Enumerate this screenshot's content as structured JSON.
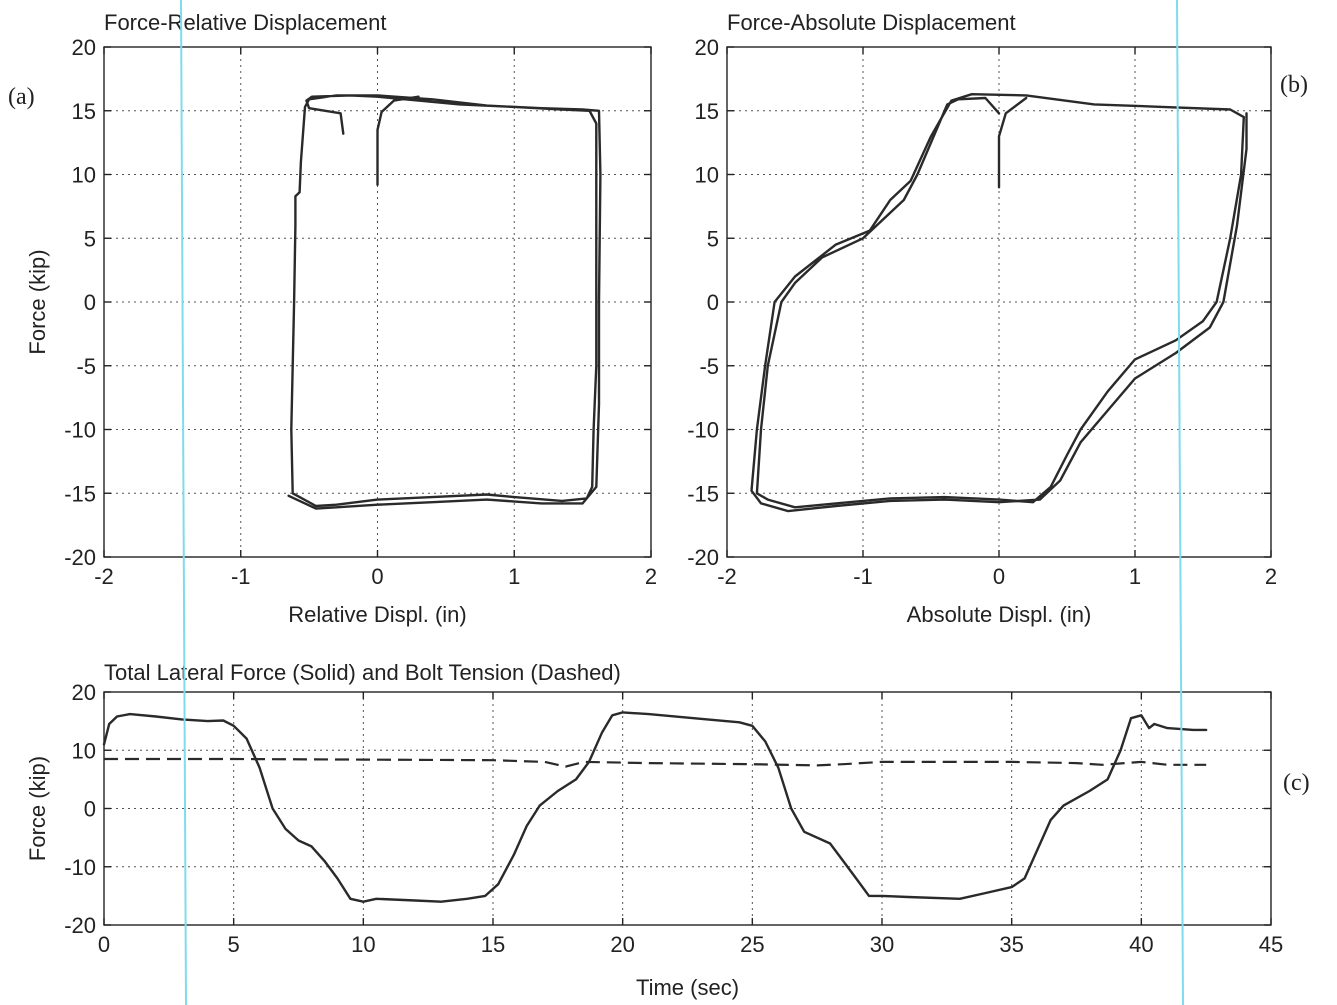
{
  "panel_labels": {
    "a": "(a)",
    "b": "(b)",
    "c": "(c)"
  },
  "chart_data": [
    {
      "id": "a",
      "type": "line",
      "title": "Force-Relative Displacement",
      "xlabel": "Relative Displ. (in)",
      "ylabel": "Force (kip)",
      "xlim": [
        -2,
        2
      ],
      "ylim": [
        -20,
        20
      ],
      "xticks": [
        -2,
        -1,
        0,
        1,
        2
      ],
      "yticks": [
        -20,
        -15,
        -10,
        -5,
        0,
        5,
        10,
        15,
        20
      ],
      "grid": true,
      "series": [
        {
          "points": [
            [
              -0.25,
              13.2
            ],
            [
              -0.27,
              14.8
            ],
            [
              -0.5,
              15.2
            ],
            [
              -0.52,
              15.8
            ],
            [
              -0.48,
              16.1
            ],
            [
              -0.2,
              16.2
            ],
            [
              0.0,
              16.1
            ],
            [
              0.3,
              15.8
            ],
            [
              0.6,
              15.5
            ],
            [
              1.0,
              15.3
            ],
            [
              1.35,
              15.1
            ],
            [
              1.55,
              15.0
            ],
            [
              1.6,
              14.0
            ],
            [
              1.6,
              5.0
            ],
            [
              1.6,
              -5.0
            ],
            [
              1.58,
              -10.0
            ],
            [
              1.57,
              -14.5
            ],
            [
              1.53,
              -15.4
            ],
            [
              1.35,
              -15.6
            ],
            [
              1.0,
              -15.3
            ],
            [
              0.8,
              -15.1
            ],
            [
              0.4,
              -15.3
            ],
            [
              0.0,
              -15.5
            ],
            [
              -0.3,
              -15.9
            ],
            [
              -0.45,
              -16.0
            ],
            [
              -0.62,
              -15.0
            ],
            [
              -0.63,
              -10.0
            ],
            [
              -0.62,
              -5.0
            ],
            [
              -0.61,
              0.0
            ],
            [
              -0.6,
              6.0
            ],
            [
              -0.6,
              8.3
            ],
            [
              -0.57,
              8.6
            ],
            [
              -0.56,
              11.0
            ],
            [
              -0.53,
              15.3
            ],
            [
              -0.5,
              15.9
            ],
            [
              -0.3,
              16.2
            ],
            [
              0.0,
              16.2
            ],
            [
              0.4,
              15.9
            ],
            [
              0.8,
              15.4
            ],
            [
              1.2,
              15.2
            ],
            [
              1.5,
              15.1
            ],
            [
              1.62,
              15.0
            ],
            [
              1.63,
              10.0
            ],
            [
              1.62,
              0.0
            ],
            [
              1.62,
              -8.0
            ],
            [
              1.6,
              -14.5
            ],
            [
              1.5,
              -15.8
            ],
            [
              1.2,
              -15.8
            ],
            [
              0.8,
              -15.5
            ],
            [
              0.4,
              -15.7
            ],
            [
              0.0,
              -15.9
            ],
            [
              -0.3,
              -16.1
            ],
            [
              -0.45,
              -16.2
            ],
            [
              -0.65,
              -15.2
            ]
          ]
        },
        {
          "points": [
            [
              0.0,
              9.2
            ],
            [
              0.0,
              13.5
            ],
            [
              0.03,
              14.9
            ],
            [
              0.12,
              15.8
            ],
            [
              0.3,
              16.1
            ]
          ]
        }
      ]
    },
    {
      "id": "b",
      "type": "line",
      "title": "Force-Absolute Displacement",
      "xlabel": "Absolute Displ. (in)",
      "ylabel": "",
      "xlim": [
        -2,
        2
      ],
      "ylim": [
        -20,
        20
      ],
      "xticks": [
        -2,
        -1,
        0,
        1,
        2
      ],
      "yticks": [
        -20,
        -15,
        -10,
        -5,
        0,
        5,
        10,
        15,
        20
      ],
      "grid": true,
      "series": [
        {
          "points": [
            [
              0.0,
              14.8
            ],
            [
              -0.1,
              16.0
            ],
            [
              -0.3,
              15.9
            ],
            [
              -0.38,
              15.5
            ],
            [
              -0.6,
              10.0
            ],
            [
              -0.7,
              8.0
            ],
            [
              -0.8,
              7.0
            ],
            [
              -1.0,
              5.0
            ],
            [
              -1.3,
              3.5
            ],
            [
              -1.5,
              1.5
            ],
            [
              -1.6,
              0.0
            ],
            [
              -1.7,
              -5.0
            ],
            [
              -1.75,
              -10.0
            ],
            [
              -1.78,
              -15.0
            ],
            [
              -1.7,
              -15.5
            ],
            [
              -1.5,
              -16.1
            ],
            [
              -1.2,
              -15.8
            ],
            [
              -0.8,
              -15.4
            ],
            [
              -0.4,
              -15.3
            ],
            [
              0.0,
              -15.5
            ],
            [
              0.25,
              -15.7
            ],
            [
              0.38,
              -14.5
            ],
            [
              0.5,
              -12.0
            ],
            [
              0.6,
              -10.0
            ],
            [
              0.8,
              -7.0
            ],
            [
              1.0,
              -4.5
            ],
            [
              1.3,
              -3.0
            ],
            [
              1.5,
              -1.5
            ],
            [
              1.6,
              0.0
            ],
            [
              1.7,
              5.0
            ],
            [
              1.78,
              10.0
            ],
            [
              1.8,
              14.5
            ],
            [
              1.7,
              15.1
            ],
            [
              1.2,
              15.3
            ],
            [
              0.7,
              15.5
            ],
            [
              0.2,
              16.2
            ],
            [
              -0.2,
              16.3
            ],
            [
              -0.35,
              15.8
            ],
            [
              -0.5,
              13.0
            ],
            [
              -0.65,
              9.5
            ],
            [
              -0.8,
              8.0
            ],
            [
              -0.95,
              5.6
            ],
            [
              -1.2,
              4.5
            ],
            [
              -1.5,
              2.0
            ],
            [
              -1.65,
              0.0
            ],
            [
              -1.72,
              -5.0
            ],
            [
              -1.78,
              -10.0
            ],
            [
              -1.82,
              -14.8
            ],
            [
              -1.75,
              -15.8
            ],
            [
              -1.55,
              -16.4
            ],
            [
              -1.2,
              -16.0
            ],
            [
              -0.8,
              -15.6
            ],
            [
              -0.4,
              -15.5
            ],
            [
              0.0,
              -15.7
            ],
            [
              0.3,
              -15.5
            ],
            [
              0.45,
              -14.0
            ],
            [
              0.6,
              -11.0
            ],
            [
              0.8,
              -8.5
            ],
            [
              1.0,
              -6.0
            ],
            [
              1.3,
              -4.0
            ],
            [
              1.55,
              -2.0
            ],
            [
              1.65,
              0.0
            ],
            [
              1.75,
              6.0
            ],
            [
              1.82,
              12.0
            ],
            [
              1.82,
              14.8
            ]
          ]
        },
        {
          "points": [
            [
              0.0,
              9.0
            ],
            [
              0.0,
              13.0
            ],
            [
              0.05,
              14.8
            ],
            [
              0.2,
              16.0
            ]
          ]
        }
      ]
    },
    {
      "id": "c",
      "type": "line",
      "title": "Total Lateral Force (Solid) and Bolt Tension (Dashed)",
      "xlabel": "Time (sec)",
      "ylabel": "Force (kip)",
      "xlim": [
        0,
        45
      ],
      "ylim": [
        -20,
        20
      ],
      "xticks": [
        0,
        5,
        10,
        15,
        20,
        25,
        30,
        35,
        40,
        45
      ],
      "yticks": [
        -20,
        -10,
        0,
        10,
        20
      ],
      "grid": true,
      "series": [
        {
          "style": "solid",
          "points": [
            [
              0.0,
              11.0
            ],
            [
              0.2,
              14.5
            ],
            [
              0.5,
              15.8
            ],
            [
              1.0,
              16.2
            ],
            [
              2.0,
              15.8
            ],
            [
              3.0,
              15.3
            ],
            [
              4.0,
              15.0
            ],
            [
              4.6,
              15.1
            ],
            [
              5.0,
              14.2
            ],
            [
              5.5,
              12.0
            ],
            [
              6.0,
              7.0
            ],
            [
              6.5,
              0.0
            ],
            [
              7.0,
              -3.5
            ],
            [
              7.5,
              -5.5
            ],
            [
              8.0,
              -6.5
            ],
            [
              8.5,
              -9.0
            ],
            [
              9.0,
              -12.0
            ],
            [
              9.5,
              -15.5
            ],
            [
              10.0,
              -16.0
            ],
            [
              10.5,
              -15.5
            ],
            [
              12.0,
              -15.8
            ],
            [
              13.0,
              -16.0
            ],
            [
              14.0,
              -15.5
            ],
            [
              14.7,
              -15.0
            ],
            [
              15.2,
              -13.0
            ],
            [
              15.8,
              -8.0
            ],
            [
              16.3,
              -3.0
            ],
            [
              16.8,
              0.5
            ],
            [
              17.5,
              3.0
            ],
            [
              18.2,
              5.0
            ],
            [
              18.7,
              8.0
            ],
            [
              19.2,
              13.0
            ],
            [
              19.6,
              16.0
            ],
            [
              20.0,
              16.5
            ],
            [
              21.0,
              16.2
            ],
            [
              23.0,
              15.4
            ],
            [
              24.5,
              14.8
            ],
            [
              25.0,
              14.2
            ],
            [
              25.5,
              11.5
            ],
            [
              26.0,
              7.0
            ],
            [
              26.5,
              0.0
            ],
            [
              27.0,
              -4.0
            ],
            [
              28.0,
              -6.0
            ],
            [
              28.5,
              -9.0
            ],
            [
              29.0,
              -12.0
            ],
            [
              29.5,
              -15.0
            ],
            [
              30.0,
              -15.0
            ],
            [
              31.0,
              -15.2
            ],
            [
              33.0,
              -15.5
            ],
            [
              34.0,
              -14.5
            ],
            [
              35.0,
              -13.5
            ],
            [
              35.5,
              -12.0
            ],
            [
              36.0,
              -7.0
            ],
            [
              36.5,
              -2.0
            ],
            [
              37.0,
              0.5
            ],
            [
              38.0,
              3.0
            ],
            [
              38.7,
              5.0
            ],
            [
              39.2,
              10.0
            ],
            [
              39.6,
              15.5
            ],
            [
              40.0,
              16.0
            ],
            [
              40.3,
              13.8
            ],
            [
              40.5,
              14.5
            ],
            [
              41.0,
              13.8
            ],
            [
              42.0,
              13.5
            ],
            [
              42.5,
              13.5
            ]
          ]
        },
        {
          "style": "dashed",
          "points": [
            [
              0.0,
              8.5
            ],
            [
              5.0,
              8.5
            ],
            [
              10.0,
              8.4
            ],
            [
              15.0,
              8.3
            ],
            [
              17.0,
              8.0
            ],
            [
              17.8,
              7.2
            ],
            [
              18.5,
              8.0
            ],
            [
              21.0,
              7.8
            ],
            [
              25.0,
              7.6
            ],
            [
              27.5,
              7.4
            ],
            [
              28.5,
              7.6
            ],
            [
              30.0,
              8.0
            ],
            [
              35.0,
              8.0
            ],
            [
              37.5,
              7.8
            ],
            [
              38.5,
              7.5
            ],
            [
              40.0,
              8.0
            ],
            [
              41.0,
              7.5
            ],
            [
              42.5,
              7.5
            ]
          ]
        }
      ]
    }
  ]
}
